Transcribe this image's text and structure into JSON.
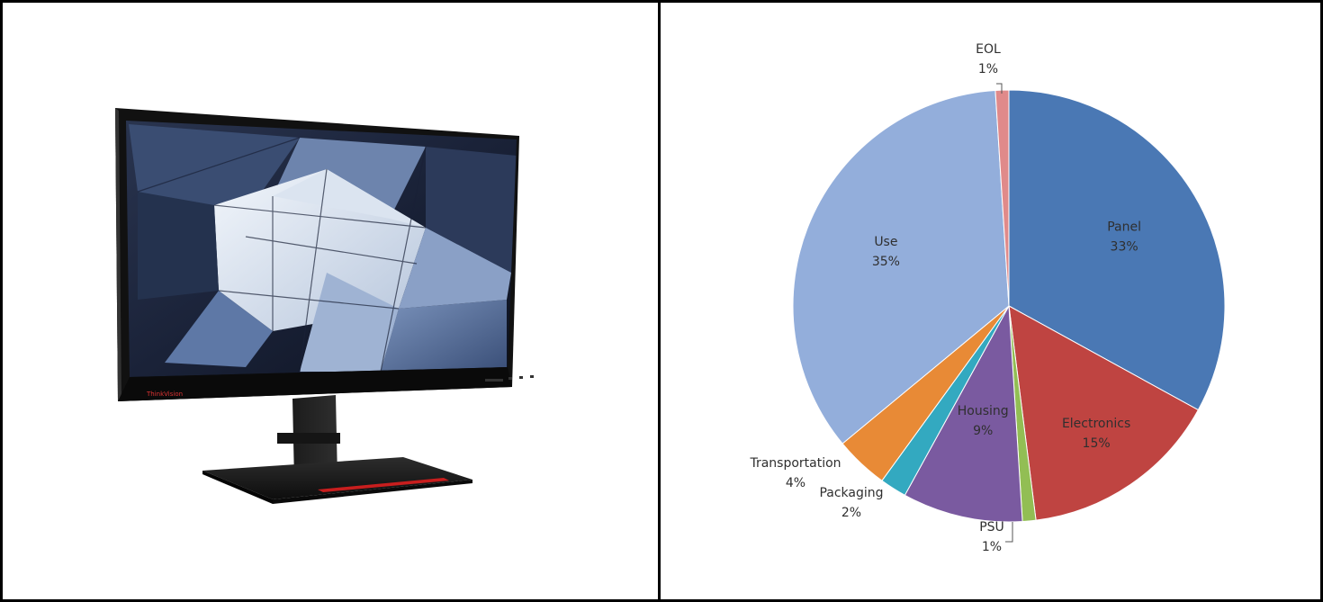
{
  "image": {
    "monitor_logo_text": "ThinkVision"
  },
  "colors": {
    "panel": "#4a78b4",
    "electronics": "#bf4441",
    "psu": "#92be54",
    "housing": "#7a5aa0",
    "packaging": "#33a9c0",
    "transportation": "#e88a36",
    "use": "#93aedb",
    "eol": "#e08a8a"
  },
  "chart_data": {
    "type": "pie",
    "start_angle_deg": 0,
    "direction": "clockwise",
    "slices": [
      {
        "name": "Panel",
        "value": 33,
        "label_value": "33%",
        "color": "#4a78b4",
        "label_position": "inside"
      },
      {
        "name": "Electronics",
        "value": 15,
        "label_value": "15%",
        "color": "#bf4441",
        "label_position": "inside"
      },
      {
        "name": "PSU",
        "value": 1,
        "label_value": "1%",
        "color": "#92be54",
        "label_position": "outside"
      },
      {
        "name": "Housing",
        "value": 9,
        "label_value": "9%",
        "color": "#7a5aa0",
        "label_position": "inside"
      },
      {
        "name": "Packaging",
        "value": 2,
        "label_value": "2%",
        "color": "#33a9c0",
        "label_position": "outside"
      },
      {
        "name": "Transportation",
        "value": 4,
        "label_value": "4%",
        "color": "#e88a36",
        "label_position": "outside"
      },
      {
        "name": "Use",
        "value": 35,
        "label_value": "35%",
        "color": "#93aedb",
        "label_position": "inside"
      },
      {
        "name": "EOL",
        "value": 1,
        "label_value": "1%",
        "color": "#e08a8a",
        "label_position": "outside"
      }
    ]
  }
}
